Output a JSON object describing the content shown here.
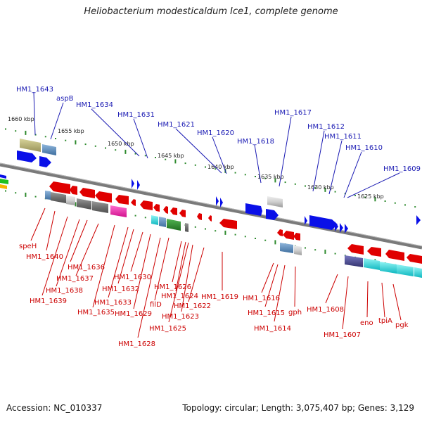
{
  "title": "Heliobacterium modesticaldum Ice1, complete genome",
  "footer": {
    "accession": "Accession: NC_010337",
    "stats": "Topology: circular; Length: 3,075,407 bp; Genes: 3,129"
  },
  "scale_labels": [
    "1660 kbp",
    "1655 kbp",
    "1650 kbp",
    "1645 kbp",
    "1640 kbp",
    "1635 kbp",
    "1630 kbp",
    "1625 kbp"
  ],
  "genes_top": [
    "HM1_1643",
    "aspB",
    "HM1_1634",
    "HM1_1631",
    "HM1_1621",
    "HM1_1620",
    "HM1_1618",
    "HM1_1617",
    "HM1_1612",
    "HM1_1611",
    "HM1_1610",
    "HM1_1609"
  ],
  "genes_bottom": [
    "speH",
    "HM1_1640",
    "HM1_1636",
    "HM1_1637",
    "HM1_1638",
    "HM1_1639",
    "HM1_1630",
    "HM1_1632",
    "HM1_1633",
    "HM1_1635",
    "HM1_1629",
    "filD",
    "HM1_1626",
    "HM1_1624",
    "HM1_1622",
    "HM1_1623",
    "HM1_1625",
    "HM1_1628",
    "HM1_1619",
    "HM1_1616",
    "HM1_1615",
    "HM1_1614",
    "gph",
    "HM1_1608",
    "HM1_1607",
    "eno",
    "tpiA",
    "pgk"
  ],
  "colors": {
    "forward_strand": "#0a10e8",
    "reverse_strand": "#e00000",
    "label_forward": "#1a1ab3",
    "label_reverse": "#cc0000",
    "backbone": "#808080",
    "ticks": "#2d8a2d"
  }
}
